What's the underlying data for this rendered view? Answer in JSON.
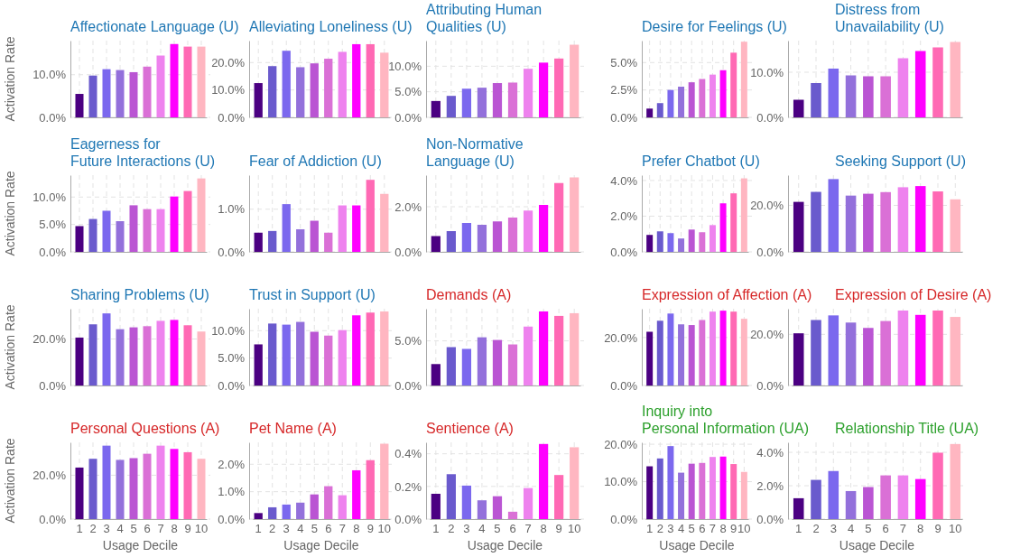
{
  "chart_data": [
    {
      "type": "bar",
      "title": "Affectionate Language (U)",
      "ylabel": "Activation Rate",
      "categories": [
        "1",
        "2",
        "3",
        "4",
        "5",
        "6",
        "7",
        "8",
        "9",
        "10"
      ],
      "values": [
        5.5,
        9.8,
        11.3,
        11.1,
        10.6,
        11.9,
        14.5,
        17.2,
        16.6,
        16.6
      ],
      "colors": [
        "#4b0082",
        "#6a5acd",
        "#7b68ee",
        "#9370db",
        "#ba55d3",
        "#da70d6",
        "#ee82ee",
        "#ff00ff",
        "#ff69b4",
        "#ffb6c1"
      ],
      "ylim": [
        0,
        18
      ],
      "yticks": [
        {
          "value": 0,
          "label": "0.0%"
        },
        {
          "value": 10,
          "label": "10.0%"
        }
      ],
      "grid": true,
      "tick_labels": "y"
    },
    {
      "type": "bar",
      "title": "Alleviating Loneliness (U)",
      "categories": [
        "1",
        "2",
        "3",
        "4",
        "5",
        "6",
        "7",
        "8",
        "9",
        "10"
      ],
      "values": [
        12.5,
        18.7,
        24.3,
        18.3,
        19.7,
        21.4,
        23.9,
        26.7,
        26.7,
        23.6
      ],
      "colors": [
        "#4b0082",
        "#6a5acd",
        "#7b68ee",
        "#9370db",
        "#ba55d3",
        "#da70d6",
        "#ee82ee",
        "#ff00ff",
        "#ff69b4",
        "#ffb6c1"
      ],
      "ylim": [
        0,
        28
      ],
      "yticks": [
        {
          "value": 0,
          "label": "0.0%"
        },
        {
          "value": 10,
          "label": "10.0%"
        },
        {
          "value": 20,
          "label": "20.0%"
        }
      ],
      "grid": true,
      "tick_labels": "y"
    },
    {
      "type": "bar",
      "title": "Attributing Human Qualities (U)",
      "categories": [
        "1",
        "2",
        "3",
        "4",
        "5",
        "6",
        "7",
        "8",
        "9",
        "10"
      ],
      "values": [
        3.2,
        4.2,
        5.6,
        5.8,
        6.7,
        6.8,
        9.5,
        10.7,
        11.5,
        14.2
      ],
      "colors": [
        "#4b0082",
        "#6a5acd",
        "#7b68ee",
        "#9370db",
        "#ba55d3",
        "#da70d6",
        "#ee82ee",
        "#ff00ff",
        "#ff69b4",
        "#ffb6c1"
      ],
      "ylim": [
        0,
        15
      ],
      "yticks": [
        {
          "value": 0,
          "label": "0.0%"
        },
        {
          "value": 5,
          "label": "5.0%"
        },
        {
          "value": 10,
          "label": "10.0%"
        }
      ],
      "grid": true,
      "tick_labels": "y"
    },
    {
      "type": "bar",
      "title": "Desire for Feelings (U)",
      "categories": [
        "1",
        "2",
        "3",
        "4",
        "5",
        "6",
        "7",
        "8",
        "9",
        "10"
      ],
      "values": [
        0.8,
        1.3,
        2.5,
        2.8,
        3.2,
        3.5,
        3.9,
        4.3,
        5.9,
        6.9
      ],
      "colors": [
        "#4b0082",
        "#6a5acd",
        "#7b68ee",
        "#9370db",
        "#ba55d3",
        "#da70d6",
        "#ee82ee",
        "#ff00ff",
        "#ff69b4",
        "#ffb6c1"
      ],
      "ylim": [
        0,
        7
      ],
      "yticks": [
        {
          "value": 0,
          "label": "0.0%"
        },
        {
          "value": 2.5,
          "label": "2.5%"
        },
        {
          "value": 5,
          "label": "5.0%"
        }
      ],
      "grid": true,
      "tick_labels": "y"
    },
    {
      "type": "bar",
      "title": "Distress from Unavailability (U)",
      "categories": [
        "1",
        "2",
        "3",
        "4",
        "5",
        "6",
        "7",
        "8",
        "9",
        "10"
      ],
      "values": [
        3.9,
        7.6,
        10.8,
        9.3,
        9.1,
        9.1,
        13.1,
        14.7,
        15.5,
        16.7
      ],
      "colors": [
        "#4b0082",
        "#6a5acd",
        "#7b68ee",
        "#9370db",
        "#ba55d3",
        "#da70d6",
        "#ee82ee",
        "#ff00ff",
        "#ff69b4",
        "#ffb6c1"
      ],
      "ylim": [
        0,
        17
      ],
      "yticks": [
        {
          "value": 0,
          "label": "0.0%"
        },
        {
          "value": 10,
          "label": "10.0%"
        }
      ],
      "grid": true,
      "tick_labels": "y"
    },
    {
      "type": "bar",
      "title": "Eagerness for Future Interactions (U)",
      "ylabel": "Activation Rate",
      "categories": [
        "1",
        "2",
        "3",
        "4",
        "5",
        "6",
        "7",
        "8",
        "9",
        "10"
      ],
      "values": [
        4.7,
        6.0,
        7.5,
        5.6,
        8.5,
        7.8,
        7.8,
        10.1,
        11.1,
        13.4
      ],
      "colors": [
        "#4b0082",
        "#6a5acd",
        "#7b68ee",
        "#9370db",
        "#ba55d3",
        "#da70d6",
        "#ee82ee",
        "#ff00ff",
        "#ff69b4",
        "#ffb6c1"
      ],
      "ylim": [
        0,
        14
      ],
      "yticks": [
        {
          "value": 0,
          "label": "0.0%"
        },
        {
          "value": 5,
          "label": "5.0%"
        },
        {
          "value": 10,
          "label": "10.0%"
        }
      ],
      "grid": true,
      "tick_labels": "y"
    },
    {
      "type": "bar",
      "title": "Fear of Addiction (U)",
      "categories": [
        "1",
        "2",
        "3",
        "4",
        "5",
        "6",
        "7",
        "8",
        "9",
        "10"
      ],
      "values": [
        0.45,
        0.49,
        1.12,
        0.53,
        0.73,
        0.45,
        1.09,
        1.09,
        1.69,
        1.36
      ],
      "colors": [
        "#4b0082",
        "#6a5acd",
        "#7b68ee",
        "#9370db",
        "#ba55d3",
        "#da70d6",
        "#ee82ee",
        "#ff00ff",
        "#ff69b4",
        "#ffb6c1"
      ],
      "ylim": [
        0,
        1.8
      ],
      "yticks": [
        {
          "value": 0,
          "label": "0.0%"
        },
        {
          "value": 1,
          "label": "1.0%"
        }
      ],
      "grid": true,
      "tick_labels": "y"
    },
    {
      "type": "bar",
      "title": "Non-Normative Language (U)",
      "categories": [
        "1",
        "2",
        "3",
        "4",
        "5",
        "6",
        "7",
        "8",
        "9",
        "10"
      ],
      "values": [
        0.7,
        0.92,
        1.28,
        1.2,
        1.35,
        1.52,
        1.83,
        2.08,
        3.05,
        3.3
      ],
      "colors": [
        "#4b0082",
        "#6a5acd",
        "#7b68ee",
        "#9370db",
        "#ba55d3",
        "#da70d6",
        "#ee82ee",
        "#ff00ff",
        "#ff69b4",
        "#ffb6c1"
      ],
      "ylim": [
        0,
        3.4
      ],
      "yticks": [
        {
          "value": 0,
          "label": "0.0%"
        },
        {
          "value": 2,
          "label": "2.0%"
        }
      ],
      "grid": true,
      "tick_labels": "y"
    },
    {
      "type": "bar",
      "title": "Prefer Chatbot (U)",
      "categories": [
        "1",
        "2",
        "3",
        "4",
        "5",
        "6",
        "7",
        "8",
        "9",
        "10"
      ],
      "values": [
        0.95,
        1.15,
        1.05,
        0.75,
        1.25,
        1.1,
        1.5,
        2.72,
        3.28,
        4.12
      ],
      "colors": [
        "#4b0082",
        "#6a5acd",
        "#7b68ee",
        "#9370db",
        "#ba55d3",
        "#da70d6",
        "#ee82ee",
        "#ff00ff",
        "#ff69b4",
        "#ffb6c1"
      ],
      "ylim": [
        0,
        4.3
      ],
      "yticks": [
        {
          "value": 0,
          "label": "0.0%"
        },
        {
          "value": 2,
          "label": "2.0%"
        },
        {
          "value": 4,
          "label": "4.0%"
        }
      ],
      "grid": true,
      "tick_labels": "y"
    },
    {
      "type": "bar",
      "title": "Seeking Support (U)",
      "categories": [
        "1",
        "2",
        "3",
        "4",
        "5",
        "6",
        "7",
        "8",
        "9",
        "10"
      ],
      "values": [
        21.5,
        25.8,
        31.3,
        24.2,
        25,
        25.7,
        27.8,
        28.3,
        26,
        22.6
      ],
      "colors": [
        "#4b0082",
        "#6a5acd",
        "#7b68ee",
        "#9370db",
        "#ba55d3",
        "#da70d6",
        "#ee82ee",
        "#ff00ff",
        "#ff69b4",
        "#ffb6c1"
      ],
      "ylim": [
        0,
        33
      ],
      "yticks": [
        {
          "value": 0,
          "label": "0.0%"
        },
        {
          "value": 20,
          "label": "20.0%"
        }
      ],
      "grid": true,
      "tick_labels": "y"
    },
    {
      "type": "bar",
      "title": "Sharing Problems (U)",
      "ylabel": "Activation Rate",
      "categories": [
        "1",
        "2",
        "3",
        "4",
        "5",
        "6",
        "7",
        "8",
        "9",
        "10"
      ],
      "values": [
        20.6,
        26.3,
        31,
        24.2,
        25,
        25.5,
        27.8,
        28.2,
        25.9,
        23.2
      ],
      "colors": [
        "#4b0082",
        "#6a5acd",
        "#7b68ee",
        "#9370db",
        "#ba55d3",
        "#da70d6",
        "#ee82ee",
        "#ff00ff",
        "#ff69b4",
        "#ffb6c1"
      ],
      "ylim": [
        0,
        33
      ],
      "yticks": [
        {
          "value": 0,
          "label": "0.0%"
        },
        {
          "value": 20,
          "label": "20.0%"
        }
      ],
      "grid": true,
      "tick_labels": "y"
    },
    {
      "type": "bar",
      "title": "Trust in Support (U)",
      "categories": [
        "1",
        "2",
        "3",
        "4",
        "5",
        "6",
        "7",
        "8",
        "9",
        "10"
      ],
      "values": [
        7.5,
        11.3,
        11.1,
        11.6,
        9.8,
        9.1,
        10.1,
        12.8,
        13.3,
        13.5
      ],
      "colors": [
        "#4b0082",
        "#6a5acd",
        "#7b68ee",
        "#9370db",
        "#ba55d3",
        "#da70d6",
        "#ee82ee",
        "#ff00ff",
        "#ff69b4",
        "#ffb6c1"
      ],
      "ylim": [
        0,
        14
      ],
      "yticks": [
        {
          "value": 0,
          "label": "0.0%"
        },
        {
          "value": 5,
          "label": "5.0%"
        },
        {
          "value": 10,
          "label": "10.0%"
        }
      ],
      "grid": true,
      "tick_labels": "y"
    },
    {
      "type": "bar",
      "title": "Demands (A)",
      "categories": [
        "1",
        "2",
        "3",
        "4",
        "5",
        "6",
        "7",
        "8",
        "9",
        "10"
      ],
      "values": [
        2.4,
        4.3,
        4.1,
        5.4,
        5.1,
        4.6,
        6.6,
        8.3,
        7.8,
        8.1
      ],
      "colors": [
        "#4b0082",
        "#6a5acd",
        "#7b68ee",
        "#9370db",
        "#ba55d3",
        "#da70d6",
        "#ee82ee",
        "#ff00ff",
        "#ff69b4",
        "#ffb6c1"
      ],
      "ylim": [
        0,
        8.6
      ],
      "yticks": [
        {
          "value": 0,
          "label": "0.0%"
        },
        {
          "value": 5,
          "label": "5.0%"
        }
      ],
      "grid": true,
      "tick_labels": "y"
    },
    {
      "type": "bar",
      "title": "Expression of Affection (A)",
      "categories": [
        "1",
        "2",
        "3",
        "4",
        "5",
        "6",
        "7",
        "8",
        "9",
        "10"
      ],
      "values": [
        22.4,
        27,
        30,
        25.5,
        25.2,
        27.3,
        30.8,
        31.2,
        30.8,
        27.8
      ],
      "colors": [
        "#4b0082",
        "#6a5acd",
        "#7b68ee",
        "#9370db",
        "#ba55d3",
        "#da70d6",
        "#ee82ee",
        "#ff00ff",
        "#ff69b4",
        "#ffb6c1"
      ],
      "ylim": [
        0,
        32
      ],
      "yticks": [
        {
          "value": 0,
          "label": "0.0%"
        },
        {
          "value": 20,
          "label": "20.0%"
        }
      ],
      "grid": true,
      "tick_labels": "y"
    },
    {
      "type": "bar",
      "title": "Expression of Desire (A)",
      "categories": [
        "1",
        "2",
        "3",
        "4",
        "5",
        "6",
        "7",
        "8",
        "9",
        "10"
      ],
      "values": [
        20.4,
        25.6,
        27.4,
        24.6,
        22.5,
        25.2,
        29.3,
        27.6,
        29.3,
        26.8
      ],
      "colors": [
        "#4b0082",
        "#6a5acd",
        "#7b68ee",
        "#9370db",
        "#ba55d3",
        "#da70d6",
        "#ee82ee",
        "#ff00ff",
        "#ff69b4",
        "#ffb6c1"
      ],
      "ylim": [
        0,
        30
      ],
      "yticks": [
        {
          "value": 0,
          "label": "0.0%"
        },
        {
          "value": 20,
          "label": "20.0%"
        }
      ],
      "grid": true,
      "tick_labels": "y"
    },
    {
      "type": "bar",
      "title": "Personal Questions (A)",
      "ylabel": "Activation Rate",
      "xlabel": "Usage Decile",
      "categories": [
        "1",
        "2",
        "3",
        "4",
        "5",
        "6",
        "7",
        "8",
        "9",
        "10"
      ],
      "values": [
        23.5,
        27.5,
        33.5,
        27,
        27.8,
        29.8,
        33.5,
        32,
        30.5,
        27.5
      ],
      "colors": [
        "#4b0082",
        "#6a5acd",
        "#7b68ee",
        "#9370db",
        "#ba55d3",
        "#da70d6",
        "#ee82ee",
        "#ff00ff",
        "#ff69b4",
        "#ffb6c1"
      ],
      "ylim": [
        0,
        35
      ],
      "yticks": [
        {
          "value": 0,
          "label": "0.0%"
        },
        {
          "value": 20,
          "label": "20.0%"
        }
      ],
      "grid": true
    },
    {
      "type": "bar",
      "title": "Pet Name (A)",
      "xlabel": "Usage Decile",
      "categories": [
        "1",
        "2",
        "3",
        "4",
        "5",
        "6",
        "7",
        "8",
        "9",
        "10"
      ],
      "values": [
        0.22,
        0.43,
        0.53,
        0.6,
        0.9,
        1.2,
        0.87,
        1.78,
        2.15,
        2.75
      ],
      "colors": [
        "#4b0082",
        "#6a5acd",
        "#7b68ee",
        "#9370db",
        "#ba55d3",
        "#da70d6",
        "#ee82ee",
        "#ff00ff",
        "#ff69b4",
        "#ffb6c1"
      ],
      "ylim": [
        0,
        2.8
      ],
      "yticks": [
        {
          "value": 0,
          "label": "0.0%"
        },
        {
          "value": 1,
          "label": "1.0%"
        },
        {
          "value": 2,
          "label": "2.0%"
        }
      ],
      "grid": true
    },
    {
      "type": "bar",
      "title": "Sentience (A)",
      "xlabel": "Usage Decile",
      "categories": [
        "1",
        "2",
        "3",
        "4",
        "5",
        "6",
        "7",
        "8",
        "9",
        "10"
      ],
      "values": [
        0.155,
        0.275,
        0.205,
        0.115,
        0.14,
        0.045,
        0.19,
        0.46,
        0.27,
        0.44
      ],
      "colors": [
        "#4b0082",
        "#6a5acd",
        "#7b68ee",
        "#9370db",
        "#ba55d3",
        "#da70d6",
        "#ee82ee",
        "#ff00ff",
        "#ff69b4",
        "#ffb6c1"
      ],
      "ylim": [
        0,
        0.47
      ],
      "yticks": [
        {
          "value": 0,
          "label": "0.0%"
        },
        {
          "value": 0.2,
          "label": "0.2%"
        },
        {
          "value": 0.4,
          "label": "0.4%"
        }
      ],
      "grid": true
    },
    {
      "type": "bar",
      "title": "Inquiry into Personal Information (UA)",
      "xlabel": "Usage Decile",
      "categories": [
        "1",
        "2",
        "3",
        "4",
        "5",
        "6",
        "7",
        "8",
        "9",
        "10"
      ],
      "values": [
        14.1,
        16.2,
        19.5,
        12.4,
        14.8,
        15,
        16.6,
        16.7,
        14.7,
        12.6
      ],
      "colors": [
        "#4b0082",
        "#6a5acd",
        "#7b68ee",
        "#9370db",
        "#ba55d3",
        "#da70d6",
        "#ee82ee",
        "#ff00ff",
        "#ff69b4",
        "#ffb6c1"
      ],
      "ylim": [
        0,
        20.5
      ],
      "yticks": [
        {
          "value": 0,
          "label": "0.0%"
        },
        {
          "value": 10,
          "label": "10.0%"
        },
        {
          "value": 20,
          "label": "20.0%"
        }
      ],
      "grid": true
    },
    {
      "type": "bar",
      "title": "Relationship Title (UA)",
      "xlabel": "Usage Decile",
      "categories": [
        "1",
        "2",
        "3",
        "4",
        "5",
        "6",
        "7",
        "8",
        "9",
        "10"
      ],
      "values": [
        1.25,
        2.35,
        2.88,
        1.68,
        1.92,
        2.62,
        2.62,
        2.4,
        3.98,
        4.5
      ],
      "colors": [
        "#4b0082",
        "#6a5acd",
        "#7b68ee",
        "#9370db",
        "#ba55d3",
        "#da70d6",
        "#ee82ee",
        "#ff00ff",
        "#ff69b4",
        "#ffb6c1"
      ],
      "ylim": [
        0,
        4.6
      ],
      "yticks": [
        {
          "value": 0,
          "label": "0.0%"
        },
        {
          "value": 2,
          "label": "2.0%"
        },
        {
          "value": 4,
          "label": "4.0%"
        }
      ],
      "grid": true
    }
  ]
}
